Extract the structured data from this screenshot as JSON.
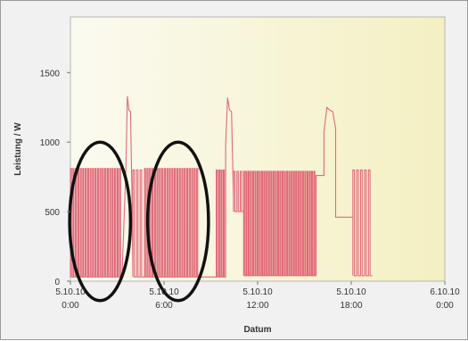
{
  "chart_data": {
    "type": "line",
    "title": "",
    "xlabel": "Datum",
    "ylabel": "Leistung / W",
    "ylim": [
      0,
      1900
    ],
    "xlim": [
      0,
      24
    ],
    "y_ticks": [
      0,
      500,
      1000,
      1500
    ],
    "x_ticks": [
      {
        "value": 0,
        "line1": "5.10.10",
        "line2": "0:00"
      },
      {
        "value": 6,
        "line1": "5.10.10",
        "line2": "6:00"
      },
      {
        "value": 12,
        "line1": "5.10.10",
        "line2": "12:00"
      },
      {
        "value": 18,
        "line1": "5.10.10",
        "line2": "18:00"
      },
      {
        "value": 24,
        "line1": "6.10.10",
        "line2": "0:00"
      }
    ],
    "grid": false,
    "legend": "none",
    "series_color": "#e06a78",
    "plot_background": "#f8f6d8",
    "segments": [
      {
        "type": "pulses",
        "start": 0.0,
        "end": 3.3,
        "count": 21,
        "high": 810,
        "low": 30
      },
      {
        "type": "spike",
        "start": 3.55,
        "end": 3.95,
        "values": [
          780,
          1330,
          1230,
          1220,
          600
        ]
      },
      {
        "type": "pulses",
        "start": 4.0,
        "end": 4.7,
        "count": 3,
        "high": 800,
        "low": 30
      },
      {
        "type": "pulses",
        "start": 4.75,
        "end": 8.25,
        "count": 22,
        "high": 810,
        "low": 30
      },
      {
        "type": "flat",
        "start": 8.25,
        "end": 9.35,
        "value": 30
      },
      {
        "type": "pulses",
        "start": 9.35,
        "end": 9.95,
        "count": 4,
        "high": 800,
        "low": 30
      },
      {
        "type": "spike",
        "start": 9.95,
        "end": 10.45,
        "values": [
          980,
          1320,
          1230,
          1220,
          600
        ]
      },
      {
        "type": "pulses",
        "start": 10.45,
        "end": 11.1,
        "count": 3,
        "high": 790,
        "low": 500
      },
      {
        "type": "pulses",
        "start": 11.1,
        "end": 15.75,
        "count": 32,
        "high": 790,
        "low": 40
      },
      {
        "type": "flat",
        "start": 15.75,
        "end": 16.25,
        "value": 760
      },
      {
        "type": "spike",
        "start": 16.25,
        "end": 17.0,
        "values": [
          1070,
          1250,
          1230,
          1220,
          1100
        ]
      },
      {
        "type": "flat",
        "start": 17.0,
        "end": 18.1,
        "value": 460
      },
      {
        "type": "pulses",
        "start": 18.1,
        "end": 19.35,
        "count": 5,
        "high": 800,
        "low": 40
      }
    ],
    "annotations": [
      {
        "shape": "ellipse",
        "color": "#111111",
        "cx": 1.9,
        "cy": 430,
        "rx": 1.95,
        "ry": 570
      },
      {
        "shape": "ellipse",
        "color": "#111111",
        "cx": 6.9,
        "cy": 430,
        "rx": 1.95,
        "ry": 570
      }
    ]
  }
}
